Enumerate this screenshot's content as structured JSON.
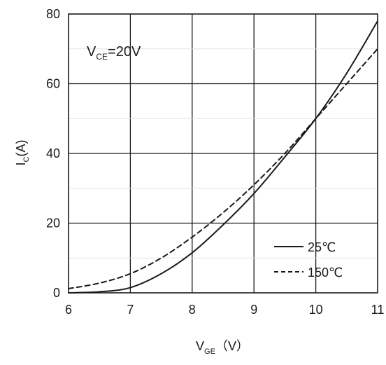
{
  "chart_data": {
    "type": "line",
    "xlabel": {
      "main": "V",
      "sub": "GE",
      "unit": "（V）"
    },
    "ylabel": {
      "main": "I",
      "sub": "C",
      "unit": "(A)"
    },
    "xlim": [
      6,
      11
    ],
    "ylim": [
      0,
      80
    ],
    "x_ticks": [
      6,
      7,
      8,
      9,
      10,
      11
    ],
    "y_ticks": [
      0,
      20,
      40,
      60,
      80
    ],
    "grid": true,
    "legend_position": "bottom-right",
    "annotation": {
      "main": "V",
      "sub": "CE",
      "rest": "=20V"
    },
    "series": [
      {
        "name": "25℃",
        "style": "solid",
        "color": "#1a1a1a",
        "x": [
          6,
          6.5,
          7,
          7.5,
          8,
          8.5,
          9,
          9.5,
          10,
          10.5,
          11
        ],
        "y": [
          0,
          0.3,
          1.5,
          5.5,
          11.5,
          19.5,
          28.5,
          39,
          50,
          63,
          78
        ]
      },
      {
        "name": "150℃",
        "style": "dashed",
        "color": "#1a1a1a",
        "x": [
          6,
          6.5,
          7,
          7.5,
          8,
          8.5,
          9,
          9.5,
          10,
          10.5,
          11
        ],
        "y": [
          1.2,
          2.8,
          5.5,
          10,
          16,
          23,
          31,
          40,
          50,
          60,
          70
        ]
      }
    ]
  }
}
